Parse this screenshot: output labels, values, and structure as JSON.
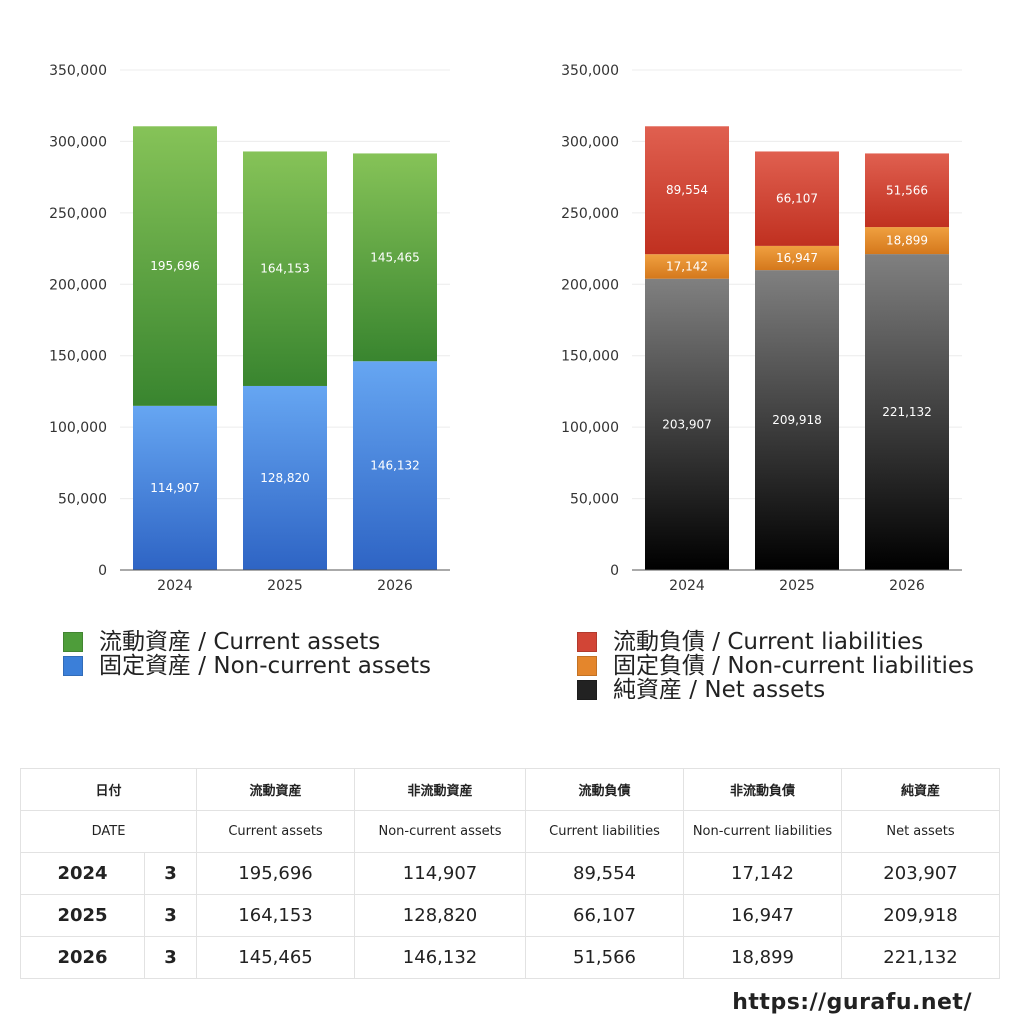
{
  "chart_data": [
    {
      "type": "bar",
      "stacked": true,
      "categories": [
        "2024",
        "2025",
        "2026"
      ],
      "ylim": [
        0,
        350000
      ],
      "yticks": [
        0,
        50000,
        100000,
        150000,
        200000,
        250000,
        300000,
        350000
      ],
      "ytick_labels": [
        "0",
        "50,000",
        "100,000",
        "150,000",
        "200,000",
        "250,000",
        "300,000",
        "350,000"
      ],
      "grid": true,
      "legend_position": "bottom",
      "series": [
        {
          "name": "固定資産 / Non-current assets",
          "values": [
            114907,
            128820,
            146132
          ],
          "labels": [
            "114,907",
            "128,820",
            "146,132"
          ],
          "color_top": "#66a6f2",
          "color_bottom": "#2e64c4"
        },
        {
          "name": "流動資産 / Current assets",
          "values": [
            195696,
            164153,
            145465
          ],
          "labels": [
            "195,696",
            "164,153",
            "145,465"
          ],
          "color_top": "#86c358",
          "color_bottom": "#39852f"
        }
      ]
    },
    {
      "type": "bar",
      "stacked": true,
      "categories": [
        "2024",
        "2025",
        "2026"
      ],
      "ylim": [
        0,
        350000
      ],
      "yticks": [
        0,
        50000,
        100000,
        150000,
        200000,
        250000,
        300000,
        350000
      ],
      "ytick_labels": [
        "0",
        "50,000",
        "100,000",
        "150,000",
        "200,000",
        "250,000",
        "300,000",
        "350,000"
      ],
      "grid": true,
      "legend_position": "bottom",
      "series": [
        {
          "name": "純資産 / Net assets",
          "values": [
            203907,
            209918,
            221132
          ],
          "labels": [
            "203,907",
            "209,918",
            "221,132"
          ],
          "color_top": "#808080",
          "color_bottom": "#000000"
        },
        {
          "name": "固定負債 / Non-current liabilities",
          "values": [
            17142,
            16947,
            18899
          ],
          "labels": [
            "17,142",
            "16,947",
            "18,899"
          ],
          "color_top": "#f0a040",
          "color_bottom": "#d4781c"
        },
        {
          "name": "流動負債 / Current liabilities",
          "values": [
            89554,
            66107,
            51566
          ],
          "labels": [
            "89,554",
            "66,107",
            "51,566"
          ],
          "color_top": "#e06050",
          "color_bottom": "#c03020"
        }
      ]
    }
  ],
  "legends": {
    "assets": [
      {
        "label": "流動資産 / Current assets",
        "color": "#4e9d3a"
      },
      {
        "label": "固定資産 / Non-current assets",
        "color": "#3b7fd9"
      }
    ],
    "liabilities": [
      {
        "label": "流動負債 / Current liabilities",
        "color": "#d24536"
      },
      {
        "label": "固定負債 / Non-current liabilities",
        "color": "#e4862c"
      },
      {
        "label": "純資産 / Net assets",
        "color": "#222222"
      }
    ]
  },
  "table": {
    "date_jp": "日付",
    "date_en": "DATE",
    "headers_jp": [
      "流動資産",
      "非流動資産",
      "流動負債",
      "非流動負債",
      "純資産"
    ],
    "headers_en": [
      "Current assets",
      "Non-current assets",
      "Current liabilities",
      "Non-current liabilities",
      "Net assets"
    ],
    "rows": [
      {
        "year": "2024",
        "month": "3",
        "values": [
          "195,696",
          "114,907",
          "89,554",
          "17,142",
          "203,907"
        ]
      },
      {
        "year": "2025",
        "month": "3",
        "values": [
          "164,153",
          "128,820",
          "66,107",
          "16,947",
          "209,918"
        ]
      },
      {
        "year": "2026",
        "month": "3",
        "values": [
          "145,465",
          "146,132",
          "51,566",
          "18,899",
          "221,132"
        ]
      }
    ]
  },
  "footer": {
    "url": "https://gurafu.net/"
  }
}
